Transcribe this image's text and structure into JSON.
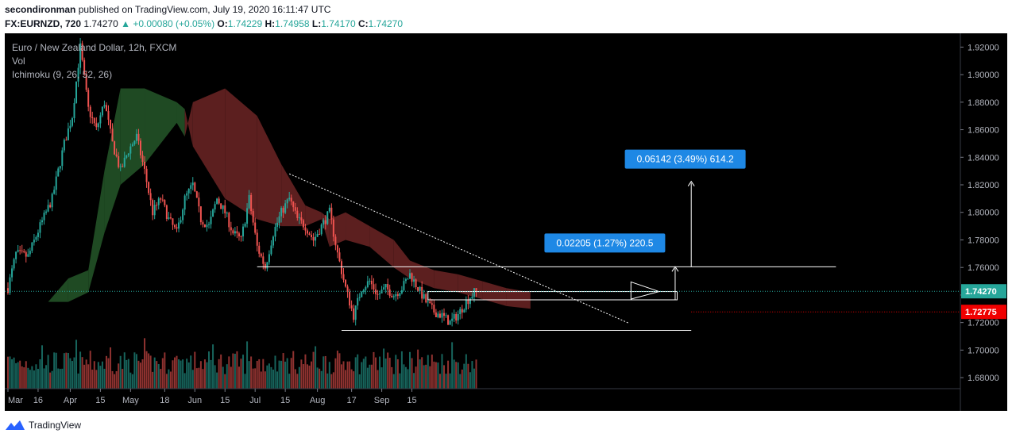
{
  "header": {
    "publisher": "secondironman",
    "published_text": "published on TradingView.com, July 19, 2020 16:11:47 UTC",
    "symbol": "FX:EURNZD, 720",
    "last": "1.74270",
    "change": "▲ +0.00080 (+0.05%)",
    "o_label": "O:",
    "o_value": "1.74229",
    "h_label": "H:",
    "h_value": "1.74958",
    "l_label": "L:",
    "l_value": "1.74170",
    "c_label": "C:",
    "c_value": "1.74270"
  },
  "legend": {
    "title": "Euro / New Zealand Dollar, 12h, FXCM",
    "vol": "Vol",
    "ichimoku": "Ichimoku (9, 26, 52, 26)"
  },
  "footer": {
    "brand": "TradingView"
  },
  "colors": {
    "up": "#26a69a",
    "down": "#ef5350",
    "background": "#000000",
    "cloud_bull": "#1f4a23",
    "cloud_bear": "#5c1f1f",
    "price_badge": "#26a69a",
    "level_badge": "#f00000",
    "measure_box": "#1e88e5"
  },
  "chart_data": {
    "type": "candlestick",
    "y_axis_ticks": [
      "1.92000",
      "1.90000",
      "1.88000",
      "1.86000",
      "1.84000",
      "1.82000",
      "1.80000",
      "1.78000",
      "1.76000",
      "1.74000",
      "1.72000",
      "1.70000",
      "1.68000"
    ],
    "x_axis_ticks": [
      "Mar",
      "16",
      "Apr",
      "15",
      "May",
      "18",
      "Jun",
      "15",
      "Jul",
      "15",
      "Aug",
      "17",
      "Sep",
      "15"
    ],
    "ylim": [
      1.672,
      1.93
    ],
    "current_price": {
      "value": 1.7427,
      "label": "1.74270"
    },
    "level_price": {
      "value": 1.72775,
      "label": "1.72775"
    },
    "horizontal_lines": [
      1.7605,
      1.7143
    ],
    "range_box": {
      "top": 1.7425,
      "bottom": 1.7365
    },
    "trendline_start": {
      "day": 70.0,
      "price": 1.828
    },
    "trendline_end": {
      "day": 154.5,
      "price": 1.7195
    },
    "measure_1": {
      "value": 1.7605,
      "label": "0.02205 (1.27%) 220.5"
    },
    "measure_2": {
      "value": 1.8225,
      "label": "0.06142 (3.49%) 614.2"
    },
    "wave_points": [
      [
        0,
        1.745
      ],
      [
        2,
        1.77
      ],
      [
        5,
        1.768
      ],
      [
        8,
        1.79
      ],
      [
        11,
        1.81
      ],
      [
        14,
        1.85
      ],
      [
        16,
        1.87
      ],
      [
        18,
        1.92
      ],
      [
        20,
        1.875
      ],
      [
        22,
        1.86
      ],
      [
        24,
        1.88
      ],
      [
        26,
        1.85
      ],
      [
        28,
        1.83
      ],
      [
        30,
        1.845
      ],
      [
        32,
        1.855
      ],
      [
        34,
        1.83
      ],
      [
        36,
        1.8
      ],
      [
        38,
        1.81
      ],
      [
        40,
        1.795
      ],
      [
        42,
        1.785
      ],
      [
        44,
        1.81
      ],
      [
        46,
        1.82
      ],
      [
        48,
        1.795
      ],
      [
        50,
        1.79
      ],
      [
        52,
        1.81
      ],
      [
        54,
        1.8
      ],
      [
        56,
        1.785
      ],
      [
        58,
        1.78
      ],
      [
        60,
        1.81
      ],
      [
        62,
        1.775
      ],
      [
        64,
        1.76
      ],
      [
        66,
        1.785
      ],
      [
        68,
        1.8
      ],
      [
        70,
        1.81
      ],
      [
        72,
        1.795
      ],
      [
        74,
        1.79
      ],
      [
        76,
        1.78
      ],
      [
        78,
        1.79
      ],
      [
        80,
        1.8
      ],
      [
        82,
        1.77
      ],
      [
        84,
        1.745
      ],
      [
        86,
        1.725
      ],
      [
        88,
        1.745
      ],
      [
        90,
        1.75
      ],
      [
        92,
        1.74
      ],
      [
        94,
        1.745
      ],
      [
        96,
        1.74
      ],
      [
        98,
        1.745
      ],
      [
        100,
        1.755
      ],
      [
        102,
        1.745
      ],
      [
        104,
        1.735
      ],
      [
        106,
        1.728
      ],
      [
        108,
        1.725
      ],
      [
        110,
        1.72
      ],
      [
        112,
        1.726
      ],
      [
        114,
        1.735
      ],
      [
        116,
        1.742
      ],
      [
        117,
        1.7427
      ]
    ],
    "cloud_points": [
      [
        0,
        1.735,
        1.735
      ],
      [
        10,
        1.735,
        1.735
      ],
      [
        15,
        1.735,
        1.752
      ],
      [
        20,
        1.742,
        1.758
      ],
      [
        24,
        1.785,
        1.83
      ],
      [
        28,
        1.82,
        1.89
      ],
      [
        34,
        1.835,
        1.89
      ],
      [
        42,
        1.865,
        1.88
      ],
      [
        44,
        1.855,
        1.875
      ],
      [
        46,
        1.88,
        1.848
      ],
      [
        54,
        1.89,
        1.81
      ],
      [
        62,
        1.87,
        1.795
      ],
      [
        68,
        1.835,
        1.79
      ],
      [
        74,
        1.805,
        1.79
      ],
      [
        78,
        1.8,
        1.795
      ],
      [
        80,
        1.795,
        1.775
      ],
      [
        84,
        1.8,
        1.78
      ],
      [
        90,
        1.79,
        1.775
      ],
      [
        96,
        1.78,
        1.76
      ],
      [
        100,
        1.765,
        1.752
      ],
      [
        106,
        1.758,
        1.745
      ],
      [
        112,
        1.755,
        1.742
      ],
      [
        118,
        1.75,
        1.737
      ],
      [
        124,
        1.745,
        1.732
      ],
      [
        130,
        1.742,
        1.73
      ]
    ]
  }
}
